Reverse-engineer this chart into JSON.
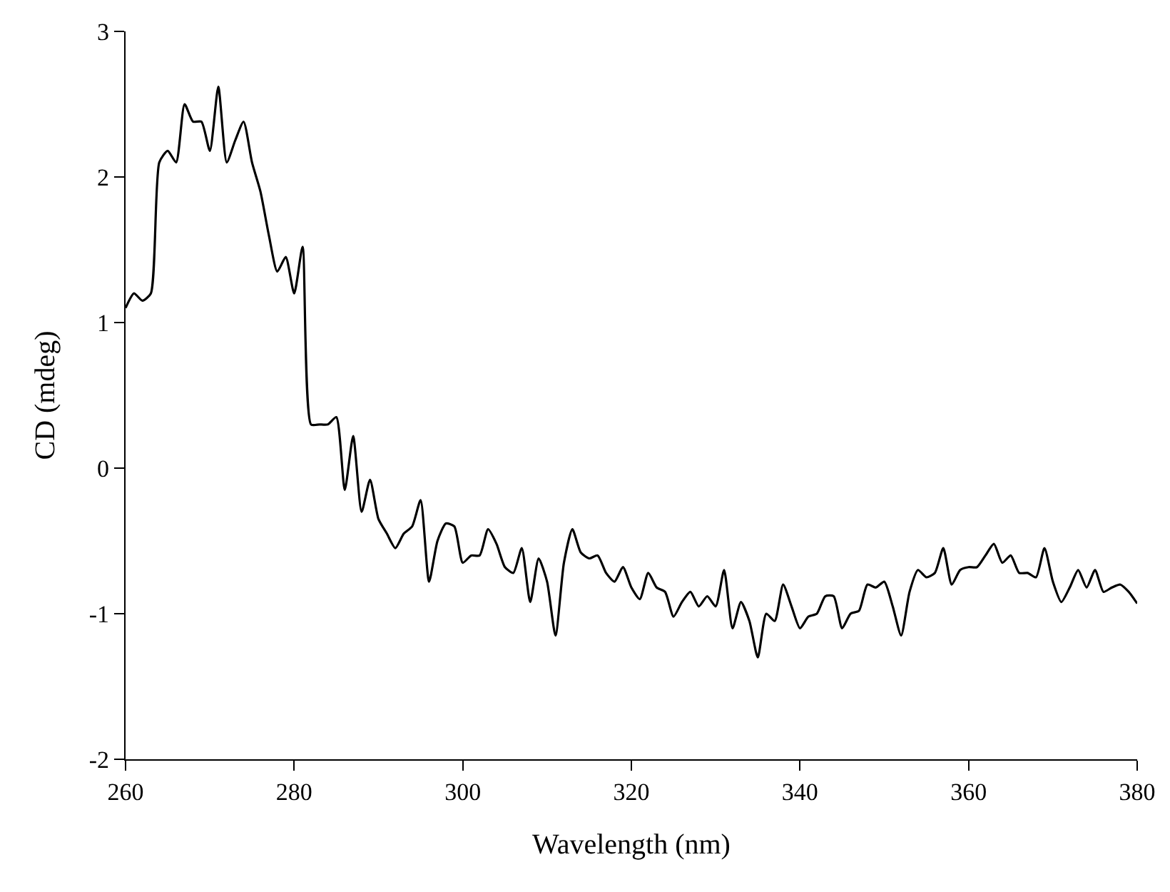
{
  "chart_data": {
    "type": "line",
    "xlabel": "Wavelength (nm)",
    "ylabel": "CD (mdeg)",
    "x": [
      260,
      261,
      262,
      263,
      264,
      265,
      266,
      267,
      268,
      269,
      270,
      271,
      272,
      273,
      274,
      275,
      276,
      277,
      278,
      279,
      280,
      281,
      282,
      283,
      284,
      285,
      286,
      287,
      288,
      289,
      290,
      291,
      292,
      293,
      294,
      295,
      296,
      297,
      298,
      299,
      300,
      301,
      302,
      303,
      304,
      305,
      306,
      307,
      308,
      309,
      310,
      311,
      312,
      313,
      314,
      315,
      316,
      317,
      318,
      319,
      320,
      321,
      322,
      323,
      324,
      325,
      326,
      327,
      328,
      329,
      330,
      331,
      332,
      333,
      334,
      335,
      336,
      337,
      338,
      339,
      340,
      341,
      342,
      343,
      344,
      345,
      346,
      347,
      348,
      349,
      350,
      351,
      352,
      353,
      354,
      355,
      356,
      357,
      358,
      359,
      360,
      361,
      362,
      363,
      364,
      365,
      366,
      367,
      368,
      369,
      370,
      371,
      372,
      373,
      374,
      375,
      376,
      377,
      378,
      379,
      380
    ],
    "series": [
      {
        "color": "#000000",
        "values": [
          1.1,
          1.2,
          1.15,
          1.2,
          2.1,
          2.18,
          2.1,
          2.5,
          2.38,
          2.38,
          2.18,
          2.62,
          2.1,
          2.25,
          2.38,
          2.1,
          1.9,
          1.6,
          1.35,
          1.45,
          1.2,
          1.52,
          0.3,
          0.3,
          0.3,
          0.35,
          -0.15,
          0.22,
          -0.3,
          -0.08,
          -0.35,
          -0.45,
          -0.55,
          -0.45,
          -0.4,
          -0.22,
          -0.78,
          -0.5,
          -0.38,
          -0.4,
          -0.65,
          -0.6,
          -0.6,
          -0.42,
          -0.52,
          -0.68,
          -0.72,
          -0.55,
          -0.92,
          -0.62,
          -0.78,
          -1.15,
          -0.65,
          -0.42,
          -0.58,
          -0.62,
          -0.6,
          -0.72,
          -0.78,
          -0.68,
          -0.82,
          -0.9,
          -0.72,
          -0.82,
          -0.85,
          -1.02,
          -0.92,
          -0.85,
          -0.95,
          -0.88,
          -0.95,
          -0.7,
          -1.1,
          -0.92,
          -1.05,
          -1.3,
          -1.0,
          -1.05,
          -0.8,
          -0.95,
          -1.1,
          -1.02,
          -1.0,
          -0.88,
          -0.88,
          -1.1,
          -1.0,
          -0.98,
          -0.8,
          -0.82,
          -0.78,
          -0.95,
          -1.15,
          -0.85,
          -0.7,
          -0.75,
          -0.72,
          -0.55,
          -0.8,
          -0.7,
          -0.68,
          -0.68,
          -0.6,
          -0.52,
          -0.65,
          -0.6,
          -0.72,
          -0.72,
          -0.75,
          -0.55,
          -0.78,
          -0.92,
          -0.82,
          -0.7,
          -0.82,
          -0.7,
          -0.85,
          -0.82,
          -0.8,
          -0.85,
          -0.93
        ]
      }
    ],
    "xlim": [
      260,
      380
    ],
    "xticks": [
      260,
      280,
      300,
      320,
      340,
      360,
      380
    ],
    "ylim": [
      -2,
      3
    ],
    "yticks": [
      -2,
      -1,
      0,
      1,
      2,
      3
    ],
    "grid": false,
    "marker": "none",
    "line_style": "solid"
  }
}
